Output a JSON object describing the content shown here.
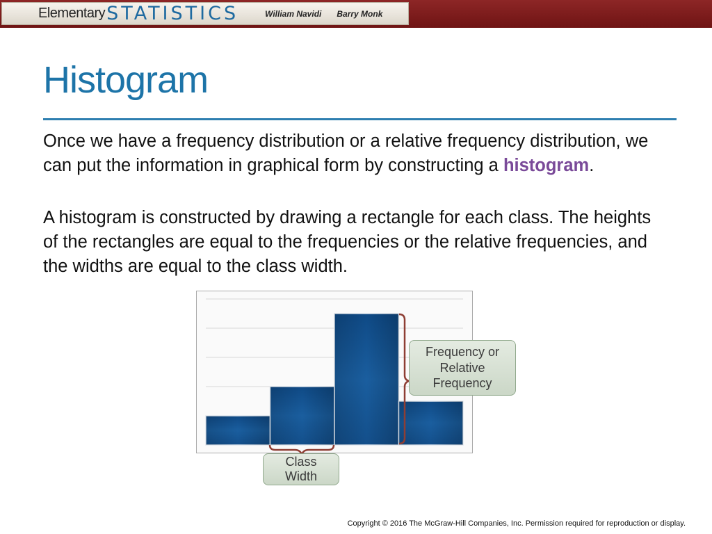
{
  "header": {
    "brand_word": "Elementary",
    "brand_stats": "STATISTICS",
    "author1": "William Navidi",
    "author2": "Barry Monk"
  },
  "slide": {
    "title": "Histogram",
    "para1_before": "Once we have a frequency distribution or a relative frequency distribution, we can put the information in graphical form by constructing a ",
    "para1_keyword": "histogram",
    "para1_after": ".",
    "para2": "A histogram is constructed by drawing a rectangle for each class. The heights of the rectangles are equal to the frequencies or the relative frequencies, and the widths are equal to the class width."
  },
  "figure": {
    "callout_frequency": [
      "Frequency or",
      "Relative",
      "Frequency"
    ],
    "callout_width": [
      "Class",
      "Width"
    ],
    "colors": {
      "bar": "#1a5c9a",
      "bar_dark": "#0d3f73",
      "brace": "#8e3e34",
      "callout_fill": "#d6e0d2"
    }
  },
  "chart_data": {
    "type": "bar",
    "bar_gap": 0,
    "values": [
      2,
      4,
      9,
      3
    ],
    "ylim": [
      0,
      10
    ],
    "grid": true
  },
  "footer": {
    "copyright": "Copyright © 2016 The McGraw-Hill Companies, Inc. Permission required for reproduction or display."
  }
}
